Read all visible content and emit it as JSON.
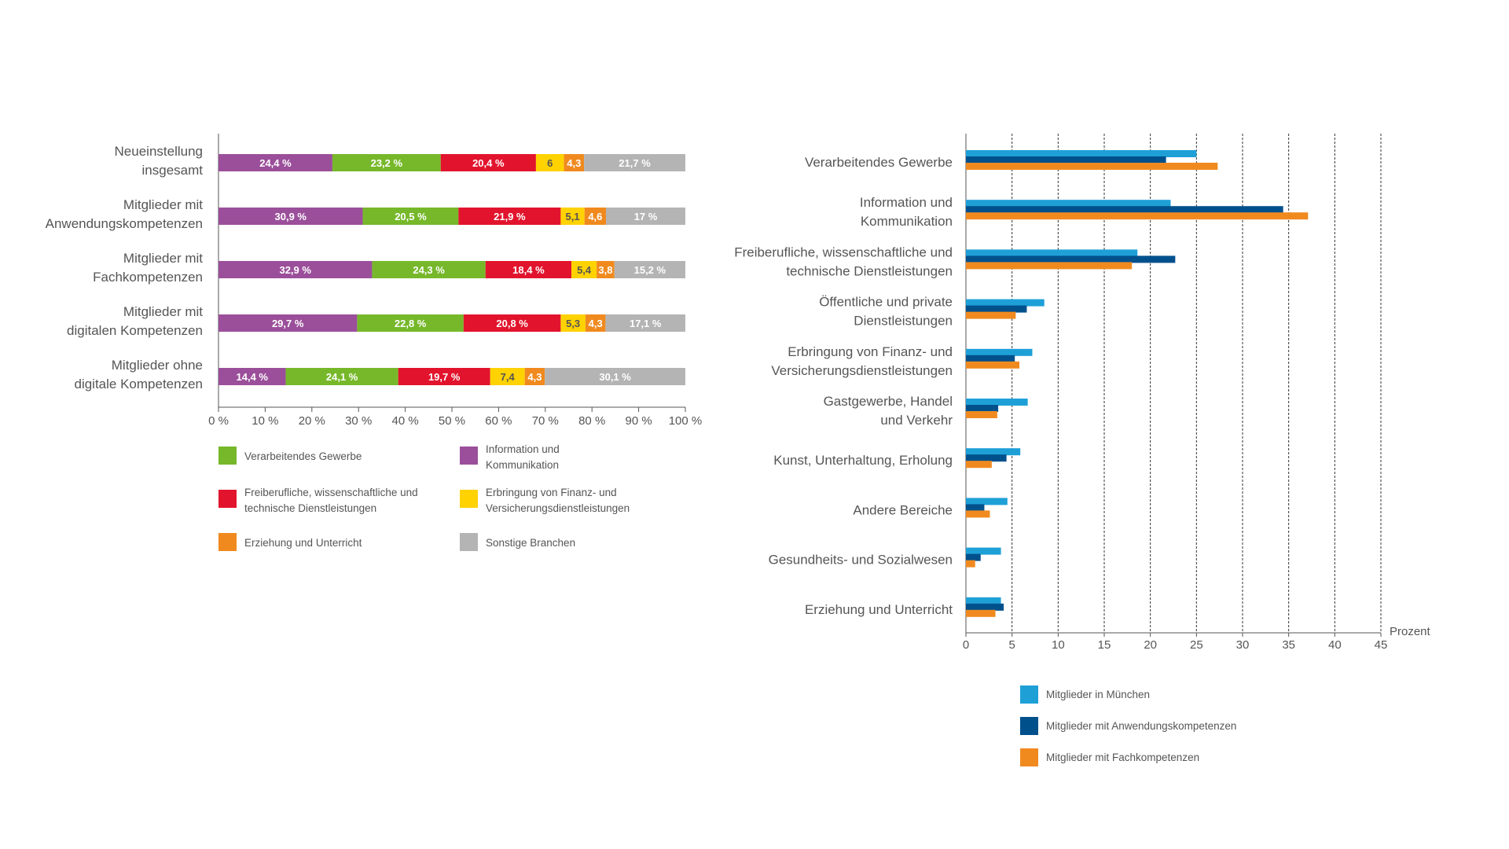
{
  "chart_data": [
    {
      "type": "bar",
      "orientation": "horizontal",
      "stacked": true,
      "categories": [
        [
          "Neueinstellung",
          "insgesamt"
        ],
        [
          "Mitglieder mit",
          "Anwendungskompetenzen"
        ],
        [
          "Mitglieder mit",
          "Fachkompetenzen"
        ],
        [
          "Mitglieder mit",
          "digitalen Kompetenzen"
        ],
        [
          "Mitglieder ohne",
          "digitale Kompetenzen"
        ]
      ],
      "series": [
        {
          "name": [
            "Information und",
            "Kommunikation"
          ],
          "color": "#9b4f9a",
          "values": [
            24.4,
            30.9,
            32.9,
            29.7,
            14.4
          ],
          "labels": [
            "24,4 %",
            "30,9 %",
            "32,9 %",
            "29,7 %",
            "14,4 %"
          ]
        },
        {
          "name": [
            "Verarbeitendes Gewerbe"
          ],
          "color": "#76b82a",
          "values": [
            23.2,
            20.5,
            24.3,
            22.8,
            24.1
          ],
          "labels": [
            "23,2 %",
            "20,5 %",
            "24,3 %",
            "22,8 %",
            "24,1 %"
          ]
        },
        {
          "name": [
            "Freiberufliche, wissenschaftliche und",
            "technische Dienstleistungen"
          ],
          "color": "#e2142d",
          "values": [
            20.4,
            21.9,
            18.4,
            20.8,
            19.7
          ],
          "labels": [
            "20,4 %",
            "21,9 %",
            "18,4 %",
            "20,8 %",
            "19,7 %"
          ]
        },
        {
          "name": [
            "Erbringung von Finanz- und",
            "Versicherungsdienstleistungen"
          ],
          "color": "#ffd200",
          "values": [
            6,
            5.1,
            5.4,
            5.3,
            7.4
          ],
          "labels": [
            "6",
            "5,1",
            "5,4",
            "5,3",
            "7,4"
          ]
        },
        {
          "name": [
            "Erziehung und Unterricht"
          ],
          "color": "#f08a1f",
          "values": [
            4.3,
            4.6,
            3.8,
            4.3,
            4.3
          ],
          "labels": [
            "4,3",
            "4,6",
            "3,8",
            "4,3",
            "4,3"
          ]
        },
        {
          "name": [
            "Sonstige Branchen"
          ],
          "color": "#b4b4b4",
          "values": [
            21.7,
            17,
            15.2,
            17.1,
            30.1
          ],
          "labels": [
            "21,7 %",
            "17 %",
            "15,2 %",
            "17,1 %",
            "30,1 %"
          ]
        }
      ],
      "xlim": [
        0,
        100
      ],
      "xticks": [
        "0 %",
        "10 %",
        "20 %",
        "30 %",
        "40 %",
        "50 %",
        "60 %",
        "70 %",
        "80 %",
        "90 %",
        "100 %"
      ],
      "legend": {
        "placement": "bottom",
        "order": [
          1,
          0,
          2,
          3,
          4,
          5
        ]
      },
      "grid": false
    },
    {
      "type": "bar",
      "orientation": "horizontal",
      "stacked": false,
      "categories": [
        [
          "Verarbeitendes Gewerbe"
        ],
        [
          "Information und",
          "Kommunikation"
        ],
        [
          "Freiberufliche, wissenschaftliche und",
          "technische Dienstleistungen"
        ],
        [
          "Öffentliche und private",
          "Dienstleistungen"
        ],
        [
          "Erbringung von Finanz- und",
          "Versicherungsdienstleistungen"
        ],
        [
          "Gastgewerbe, Handel",
          "und Verkehr"
        ],
        [
          "Kunst, Unterhaltung, Erholung"
        ],
        [
          "Andere Bereiche"
        ],
        [
          "Gesundheits- und Sozialwesen"
        ],
        [
          "Erziehung und Unterricht"
        ]
      ],
      "series": [
        {
          "name": "Mitglieder in München",
          "color": "#1ea0d7",
          "values": [
            25,
            22.2,
            18.6,
            8.5,
            7.2,
            6.7,
            5.9,
            4.5,
            3.8,
            3.8
          ]
        },
        {
          "name": "Mitglieder mit Anwendungskompetenzen",
          "color": "#00508c",
          "values": [
            21.7,
            34.4,
            22.7,
            6.6,
            5.3,
            3.5,
            4.4,
            2.0,
            1.6,
            4.1
          ]
        },
        {
          "name": "Mitglieder mit Fachkompetenzen",
          "color": "#f08a1f",
          "values": [
            27.3,
            37.1,
            18.0,
            5.4,
            5.8,
            3.4,
            2.8,
            2.6,
            1.0,
            3.2
          ]
        }
      ],
      "xlim": [
        0,
        45
      ],
      "xticks": [
        "0",
        "5",
        "10",
        "15",
        "20",
        "25",
        "30",
        "35",
        "40",
        "45"
      ],
      "xlabel": "Prozent",
      "grid": true,
      "legend": {
        "placement": "bottom"
      }
    }
  ]
}
